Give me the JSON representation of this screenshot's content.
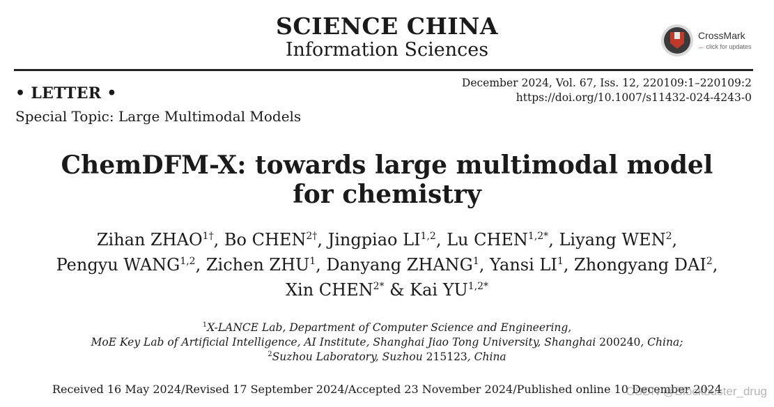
{
  "journal": {
    "name": "SCIENCE CHINA",
    "section": "Information Sciences"
  },
  "crossmark": {
    "label": "CrossMark",
    "sub": "click for updates"
  },
  "article_type": "• LETTER •",
  "special_topic": "Special Topic: Large Multimodal Models",
  "pub_info": {
    "citation": "December 2024, Vol. 67, Iss. 12, 220109:1–220109:2",
    "doi": "https://doi.org/10.1007/s11432-024-4243-0"
  },
  "title": {
    "line1": "ChemDFM-X: towards large multimodal model",
    "line2": "for chemistry"
  },
  "authors": [
    {
      "name": "Zihan ZHAO",
      "sup": "1†"
    },
    {
      "name": "Bo CHEN",
      "sup": "2†"
    },
    {
      "name": "Jingpiao LI",
      "sup": "1,2"
    },
    {
      "name": "Lu CHEN",
      "sup": "1,2*"
    },
    {
      "name": "Liyang WEN",
      "sup": "2"
    },
    {
      "name": "Pengyu WANG",
      "sup": "1,2"
    },
    {
      "name": "Zichen ZHU",
      "sup": "1"
    },
    {
      "name": "Danyang ZHANG",
      "sup": "1"
    },
    {
      "name": "Yansi LI",
      "sup": "1"
    },
    {
      "name": "Zhongyang DAI",
      "sup": "2"
    },
    {
      "name": "Xin CHEN",
      "sup": "2*"
    },
    {
      "name": "Kai YU",
      "sup": "1,2*"
    }
  ],
  "affiliations": {
    "a1_sup": "1",
    "a1_line1": "X-LANCE Lab, Department of Computer Science and Engineering,",
    "a1_line2_pre": "MoE Key Lab of Artificial Intelligence, AI Institute, Shanghai Jiao Tong University, Shanghai ",
    "a1_line2_num": "200240",
    "a1_line2_post": ", China;",
    "a2_sup": "2",
    "a2_pre": "Suzhou Laboratory, Suzhou ",
    "a2_num": "215123",
    "a2_post": ", China"
  },
  "dates": "Received 16 May 2024/Revised 17 September 2024/Accepted 23 November 2024/Published online 10 December 2024",
  "watermark": "CSDN @Blockbuster_drug"
}
